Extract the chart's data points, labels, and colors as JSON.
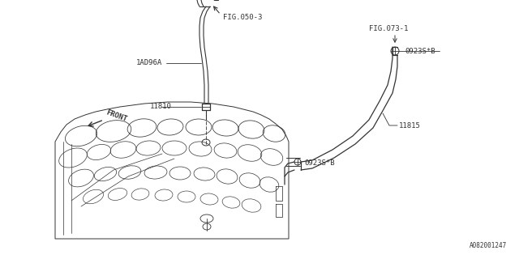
{
  "bg_color": "#ffffff",
  "line_color": "#333333",
  "part_number": "A082001247",
  "labels": {
    "fig050": "FIG.050-3",
    "fig073": "FIG.073-1",
    "part_1ad96a": "1AD96A",
    "part_11810": "11810",
    "part_11815": "11815",
    "part_0923s_top": "0923S*B",
    "part_0923s_bot": "0923S*B",
    "front": "FRONT"
  },
  "font_size": 6.5,
  "lw_main": 0.7,
  "lw_hose": 1.0
}
